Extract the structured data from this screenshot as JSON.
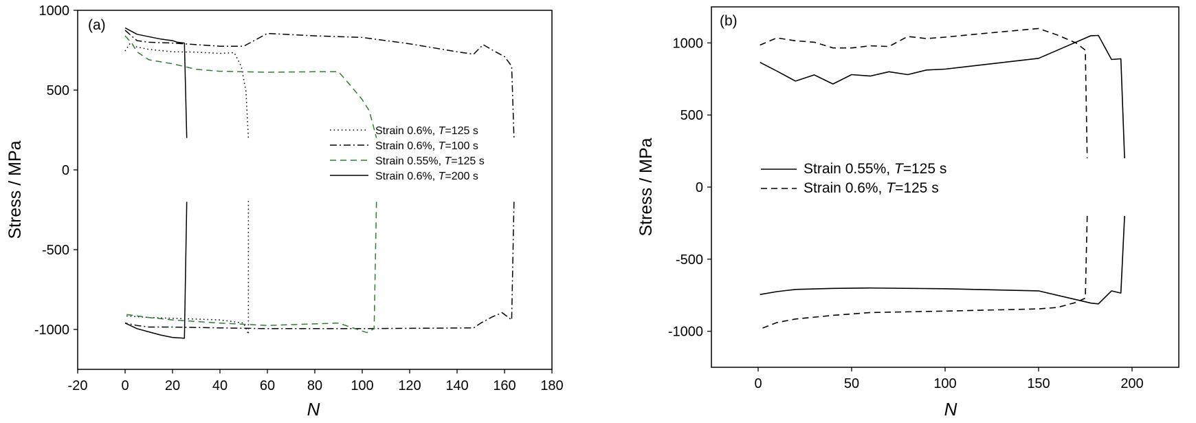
{
  "chart_data": [
    {
      "type": "line",
      "panel_label": "(a)",
      "xlabel": "N",
      "ylabel": "Stress / MPa",
      "xlim": [
        -20,
        180
      ],
      "ylim": [
        -1250,
        1000
      ],
      "xticks": [
        -20,
        0,
        20,
        40,
        60,
        80,
        100,
        120,
        140,
        160,
        180
      ],
      "yticks": [
        -1000,
        -500,
        0,
        500,
        1000
      ],
      "grid": false,
      "legend_position": "right-middle",
      "series": [
        {
          "name": "Strain 0.6%, T=125 s",
          "name_prefix": "Strain 0.6%, ",
          "name_var": "T",
          "name_suffix": "=125 s",
          "color": "#000000",
          "style": "dotted",
          "segments": [
            [
              [
                0,
                745
              ],
              [
                2,
                790
              ],
              [
                5,
                770
              ],
              [
                10,
                755
              ],
              [
                20,
                740
              ],
              [
                30,
                738
              ],
              [
                40,
                730
              ],
              [
                46,
                735
              ],
              [
                49,
                650
              ],
              [
                51,
                490
              ],
              [
                52,
                195
              ]
            ],
            [
              [
                52,
                -195
              ],
              [
                52,
                -900
              ],
              [
                52,
                -1030
              ],
              [
                50,
                -960
              ],
              [
                45,
                -950
              ],
              [
                40,
                -940
              ],
              [
                30,
                -935
              ],
              [
                20,
                -930
              ],
              [
                10,
                -925
              ],
              [
                5,
                -920
              ],
              [
                0,
                -915
              ]
            ]
          ]
        },
        {
          "name": "Strain 0.6%, T=100 s",
          "name_prefix": "Strain 0.6%, ",
          "name_var": "T",
          "name_suffix": "=100 s",
          "color": "#000000",
          "style": "dashdot",
          "segments": [
            [
              [
                0,
                875
              ],
              [
                5,
                810
              ],
              [
                10,
                800
              ],
              [
                20,
                795
              ],
              [
                30,
                785
              ],
              [
                40,
                775
              ],
              [
                50,
                775
              ],
              [
                55,
                815
              ],
              [
                60,
                855
              ],
              [
                80,
                840
              ],
              [
                100,
                830
              ],
              [
                120,
                790
              ],
              [
                140,
                740
              ],
              [
                147,
                725
              ],
              [
                151,
                785
              ],
              [
                155,
                750
              ],
              [
                160,
                710
              ],
              [
                163,
                650
              ],
              [
                164,
                200
              ]
            ],
            [
              [
                164,
                -200
              ],
              [
                163,
                -940
              ],
              [
                159,
                -895
              ],
              [
                155,
                -920
              ],
              [
                150,
                -960
              ],
              [
                147,
                -990
              ],
              [
                100,
                -995
              ],
              [
                60,
                -995
              ],
              [
                40,
                -990
              ],
              [
                20,
                -985
              ],
              [
                10,
                -985
              ],
              [
                5,
                -975
              ],
              [
                0,
                -960
              ]
            ]
          ]
        },
        {
          "name": "Strain 0.55%, T=125 s",
          "name_prefix": "Strain 0.55%, ",
          "name_var": "T",
          "name_suffix": "=125 s",
          "color": "#2e7d32",
          "style": "dashed",
          "segments": [
            [
              [
                0,
                840
              ],
              [
                3,
                790
              ],
              [
                5,
                740
              ],
              [
                10,
                690
              ],
              [
                20,
                665
              ],
              [
                30,
                630
              ],
              [
                40,
                618
              ],
              [
                60,
                612
              ],
              [
                80,
                615
              ],
              [
                90,
                615
              ],
              [
                95,
                530
              ],
              [
                100,
                440
              ],
              [
                103,
                370
              ],
              [
                106,
                200
              ]
            ],
            [
              [
                106,
                -200
              ],
              [
                105,
                -995
              ],
              [
                102,
                -1020
              ],
              [
                100,
                -1010
              ],
              [
                90,
                -960
              ],
              [
                80,
                -965
              ],
              [
                60,
                -975
              ],
              [
                40,
                -960
              ],
              [
                20,
                -940
              ],
              [
                10,
                -925
              ],
              [
                0,
                -905
              ]
            ]
          ]
        },
        {
          "name": "Strain 0.6%, T=200 s",
          "name_prefix": "Strain 0.6%, ",
          "name_var": "T",
          "name_suffix": "=200 s",
          "color": "#000000",
          "style": "solid",
          "segments": [
            [
              [
                0,
                890
              ],
              [
                5,
                850
              ],
              [
                10,
                835
              ],
              [
                15,
                820
              ],
              [
                20,
                810
              ],
              [
                22,
                800
              ],
              [
                25,
                795
              ],
              [
                26,
                200
              ]
            ],
            [
              [
                26,
                -200
              ],
              [
                25,
                -1055
              ],
              [
                20,
                -1050
              ],
              [
                15,
                -1035
              ],
              [
                10,
                -1015
              ],
              [
                5,
                -995
              ],
              [
                0,
                -960
              ]
            ]
          ]
        }
      ]
    },
    {
      "type": "line",
      "panel_label": "(b)",
      "xlabel": "N",
      "ylabel": "Stress / MPa",
      "xlim": [
        -25,
        225
      ],
      "ylim": [
        -1250,
        1250
      ],
      "xticks": [
        0,
        50,
        100,
        150,
        200
      ],
      "yticks": [
        -1000,
        -500,
        0,
        500,
        1000
      ],
      "grid": false,
      "legend_position": "center",
      "series": [
        {
          "name": "Strain 0.55%, T=125 s",
          "name_prefix": "Strain 0.55%, ",
          "name_var": "T",
          "name_suffix": "=125 s",
          "color": "#000000",
          "style": "solid",
          "segments": [
            [
              [
                1,
                865
              ],
              [
                10,
                805
              ],
              [
                20,
                735
              ],
              [
                30,
                778
              ],
              [
                40,
                715
              ],
              [
                50,
                780
              ],
              [
                60,
                770
              ],
              [
                70,
                800
              ],
              [
                80,
                780
              ],
              [
                90,
                812
              ],
              [
                100,
                818
              ],
              [
                150,
                893
              ],
              [
                178,
                1050
              ],
              [
                182,
                1052
              ],
              [
                189,
                885
              ],
              [
                194,
                890
              ],
              [
                196,
                200
              ]
            ],
            [
              [
                196,
                -200
              ],
              [
                194,
                -735
              ],
              [
                189,
                -720
              ],
              [
                182,
                -810
              ],
              [
                178,
                -805
              ],
              [
                150,
                -720
              ],
              [
                100,
                -705
              ],
              [
                60,
                -700
              ],
              [
                40,
                -703
              ],
              [
                20,
                -710
              ],
              [
                10,
                -725
              ],
              [
                1,
                -745
              ]
            ]
          ]
        },
        {
          "name": "Strain 0.6%, T=125 s",
          "name_prefix": "Strain 0.6%, ",
          "name_var": "T",
          "name_suffix": "=125 s",
          "color": "#000000",
          "style": "dashed",
          "segments": [
            [
              [
                1,
                985
              ],
              [
                10,
                1035
              ],
              [
                20,
                1015
              ],
              [
                30,
                1005
              ],
              [
                40,
                965
              ],
              [
                50,
                965
              ],
              [
                60,
                980
              ],
              [
                70,
                975
              ],
              [
                80,
                1045
              ],
              [
                90,
                1030
              ],
              [
                100,
                1040
              ],
              [
                120,
                1065
              ],
              [
                150,
                1100
              ],
              [
                160,
                1055
              ],
              [
                170,
                1000
              ],
              [
                175,
                950
              ],
              [
                176,
                200
              ]
            ],
            [
              [
                176,
                -200
              ],
              [
                175,
                -770
              ],
              [
                170,
                -800
              ],
              [
                160,
                -835
              ],
              [
                150,
                -845
              ],
              [
                100,
                -860
              ],
              [
                60,
                -870
              ],
              [
                40,
                -890
              ],
              [
                20,
                -915
              ],
              [
                10,
                -940
              ],
              [
                1,
                -985
              ]
            ]
          ]
        }
      ]
    }
  ]
}
